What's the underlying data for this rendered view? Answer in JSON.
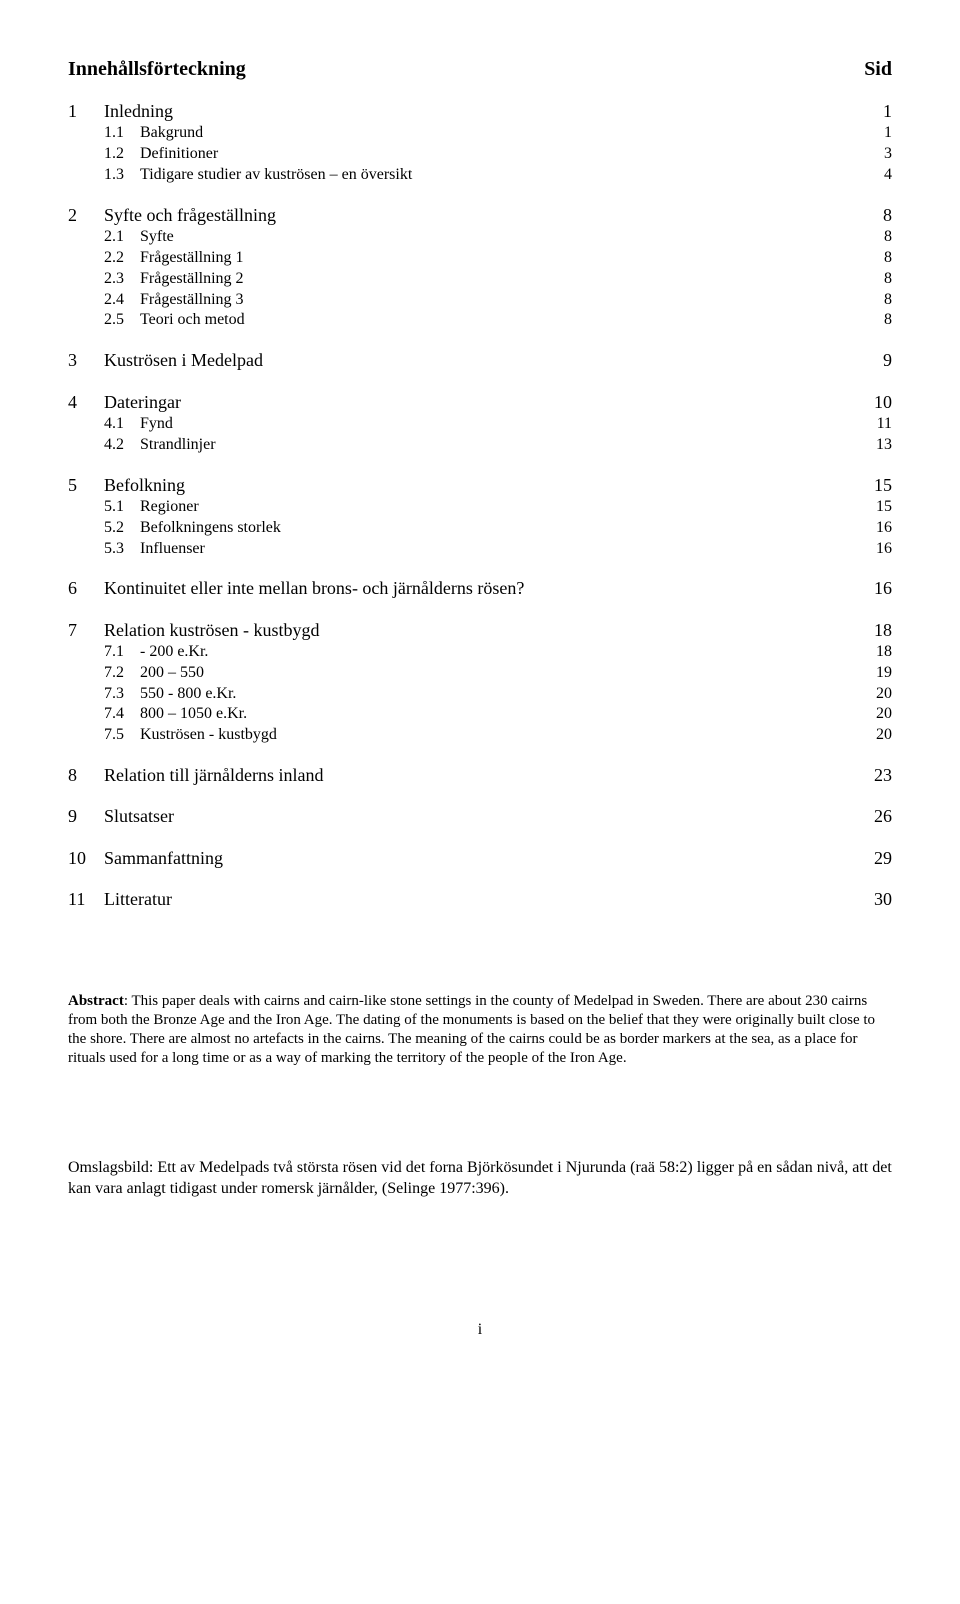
{
  "header": {
    "left": "Innehållsförteckning",
    "right": "Sid"
  },
  "toc": [
    {
      "type": "sec",
      "num": "1",
      "title": "Inledning",
      "page": "1"
    },
    {
      "type": "sub",
      "num": "1.1",
      "title": "Bakgrund",
      "page": "1"
    },
    {
      "type": "sub",
      "num": "1.2",
      "title": "Definitioner",
      "page": "3"
    },
    {
      "type": "sub",
      "num": "1.3",
      "title": "Tidigare studier av kuströsen – en översikt",
      "page": "4"
    },
    {
      "type": "gap"
    },
    {
      "type": "sec",
      "num": "2",
      "title": "Syfte och frågeställning",
      "page": "8"
    },
    {
      "type": "sub",
      "num": "2.1",
      "title": "Syfte",
      "page": "8"
    },
    {
      "type": "sub",
      "num": "2.2",
      "title": "Frågeställning 1",
      "page": "8"
    },
    {
      "type": "sub",
      "num": "2.3",
      "title": "Frågeställning 2",
      "page": "8"
    },
    {
      "type": "sub",
      "num": "2.4",
      "title": "Frågeställning 3",
      "page": "8"
    },
    {
      "type": "sub",
      "num": "2.5",
      "title": "Teori och metod",
      "page": "8"
    },
    {
      "type": "gap"
    },
    {
      "type": "sec",
      "num": "3",
      "title": "Kuströsen i Medelpad",
      "page": "9"
    },
    {
      "type": "gap"
    },
    {
      "type": "sec",
      "num": "4",
      "title": "Dateringar",
      "page": "10"
    },
    {
      "type": "sub",
      "num": "4.1",
      "title": "Fynd",
      "page": "11"
    },
    {
      "type": "sub",
      "num": "4.2",
      "title": "Strandlinjer",
      "page": "13"
    },
    {
      "type": "gap"
    },
    {
      "type": "sec",
      "num": "5",
      "title": "Befolkning",
      "page": "15"
    },
    {
      "type": "sub",
      "num": "5.1",
      "title": "Regioner",
      "page": "15"
    },
    {
      "type": "sub",
      "num": "5.2",
      "title": "Befolkningens storlek",
      "page": "16"
    },
    {
      "type": "sub",
      "num": "5.3",
      "title": "Influenser",
      "page": "16"
    },
    {
      "type": "gap"
    },
    {
      "type": "sec",
      "num": "6",
      "title": "Kontinuitet eller inte mellan brons- och järnålderns rösen?",
      "page": "16"
    },
    {
      "type": "gap"
    },
    {
      "type": "sec",
      "num": "7",
      "title": "Relation kuströsen - kustbygd",
      "page": "18"
    },
    {
      "type": "sub",
      "num": "7.1",
      "title": "  - 200 e.Kr.",
      "page": "18"
    },
    {
      "type": "sub",
      "num": "7.2",
      "title": "200 – 550",
      "page": "19"
    },
    {
      "type": "sub",
      "num": "7.3",
      "title": "550 - 800 e.Kr.",
      "page": "20"
    },
    {
      "type": "sub",
      "num": "7.4",
      "title": "800 – 1050 e.Kr.",
      "page": "20"
    },
    {
      "type": "sub",
      "num": "7.5",
      "title": "Kuströsen - kustbygd",
      "page": "20"
    },
    {
      "type": "gap"
    },
    {
      "type": "sec",
      "num": "8",
      "title": "Relation till järnålderns inland",
      "page": "23"
    },
    {
      "type": "gap"
    },
    {
      "type": "sec",
      "num": "9",
      "title": "Slutsatser",
      "page": "26"
    },
    {
      "type": "gap"
    },
    {
      "type": "sec",
      "num": "10",
      "title": "Sammanfattning",
      "page": "29"
    },
    {
      "type": "gap"
    },
    {
      "type": "sec",
      "num": "11",
      "title": "Litteratur",
      "page": "30"
    }
  ],
  "abstract": {
    "label": "Abstract",
    "text": ": This paper deals with cairns and cairn-like stone settings in the county of Medelpad in Sweden. There are about 230 cairns from both the Bronze Age and the Iron Age. The dating of the monuments is based on the belief that they were originally built close to the shore. There are almost no artefacts in the cairns. The meaning of the cairns could be as border markers at the sea, as a place for rituals used for a long time or as a way of marking the territory of the people of the Iron Age."
  },
  "caption": "Omslagsbild: Ett av Medelpads två största rösen vid det forna Björkösundet i Njurunda (raä 58:2) ligger på en sådan nivå, att det kan vara anlagt tidigast under romersk järnålder, (Selinge 1977:396).",
  "page_number": "i"
}
